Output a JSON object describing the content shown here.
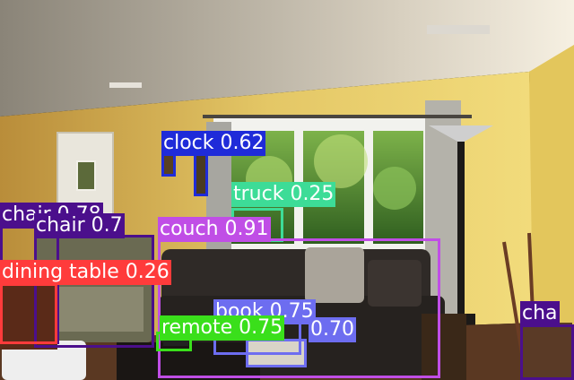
{
  "detections": [
    {
      "label": "clock 0.62",
      "color": "#1f2bd9",
      "text_color": "#ffffff"
    },
    {
      "label": "clock",
      "color": "#1f2bd9",
      "text_color": "#ffffff"
    },
    {
      "label": "truck 0.25",
      "color": "#3ddc97",
      "text_color": "#ffffff"
    },
    {
      "label": "chair 0.78",
      "color": "#4b0f8c",
      "text_color": "#ffffff"
    },
    {
      "label": "chair 0.7",
      "color": "#4b0f8c",
      "text_color": "#ffffff"
    },
    {
      "label": "couch 0.91",
      "color": "#c04ee6",
      "text_color": "#ffffff"
    },
    {
      "label": "dining table 0.26",
      "color": "#ff3b3b",
      "text_color": "#ffffff"
    },
    {
      "label": "book 0.75",
      "color": "#6d6df0",
      "text_color": "#ffffff"
    },
    {
      "label": "0.70",
      "color": "#6d6df0",
      "text_color": "#ffffff"
    },
    {
      "label": "remote 0.75",
      "color": "#3adf1b",
      "text_color": "#ffffff"
    },
    {
      "label": "cha",
      "color": "#4b0f8c",
      "text_color": "#ffffff"
    }
  ]
}
